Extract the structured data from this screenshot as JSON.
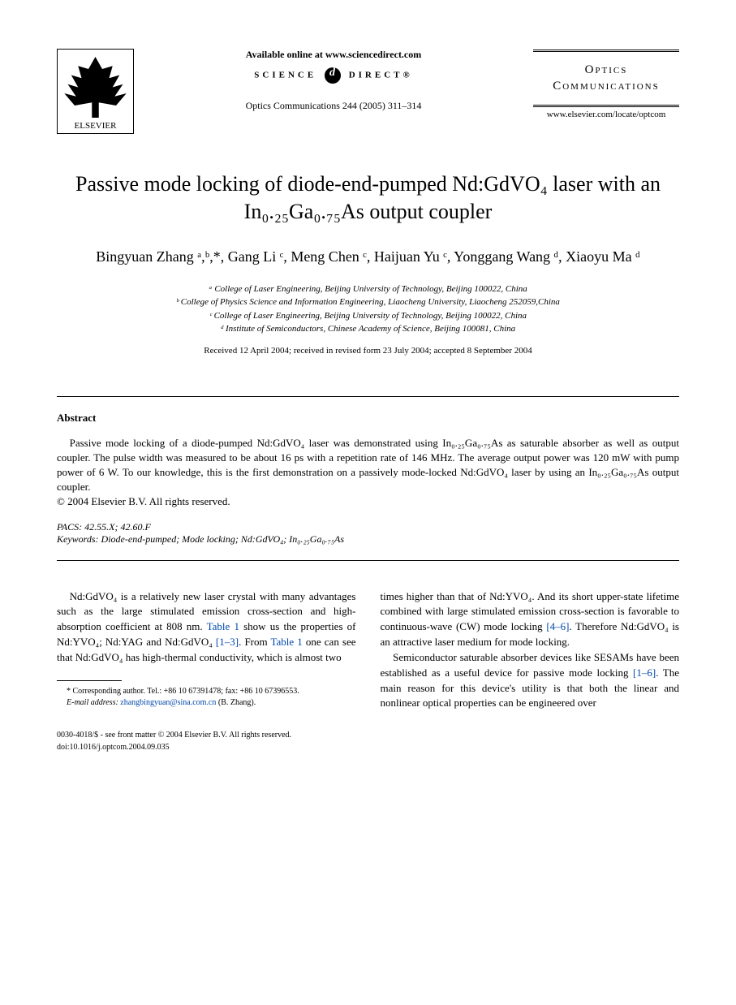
{
  "header": {
    "publisher": "ELSEVIER",
    "available": "Available online at www.sciencedirect.com",
    "science_direct": "SCIENCE",
    "science_direct2": "DIRECT®",
    "journal_ref": "Optics Communications 244 (2005) 311–314",
    "journal_name_1": "Optics",
    "journal_name_2": "Communications",
    "journal_url": "www.elsevier.com/locate/optcom"
  },
  "title": "Passive mode locking of diode-end-pumped Nd:GdVO₄ laser with an In₀.₂₅Ga₀.₇₅As output coupler",
  "authors": "Bingyuan Zhang ᵃ,ᵇ,*, Gang Li ᶜ, Meng Chen ᶜ, Haijuan Yu ᶜ, Yonggang Wang ᵈ, Xiaoyu Ma ᵈ",
  "affiliations": {
    "a": "ᵃ College of Laser Engineering, Beijing University of Technology, Beijing 100022, China",
    "b": "ᵇ College of Physics Science and Information Engineering, Liaocheng University, Liaocheng 252059,China",
    "c": "ᶜ College of Laser Engineering, Beijing University of Technology, Beijing 100022, China",
    "d": "ᵈ Institute of Semiconductors, Chinese Academy of Science, Beijing 100081, China"
  },
  "dates": "Received 12 April 2004; received in revised form 23 July 2004; accepted 8 September 2004",
  "abstract": {
    "heading": "Abstract",
    "text": "Passive mode locking of a diode-pumped Nd:GdVO₄ laser was demonstrated using In₀.₂₅Ga₀.₇₅As as saturable absorber as well as output coupler. The pulse width was measured to be about 16 ps with a repetition rate of 146 MHz. The average output power was 120 mW with pump power of 6 W. To our knowledge, this is the first demonstration on a passively mode-locked Nd:GdVO₄ laser by using an In₀.₂₅Ga₀.₇₅As output coupler.",
    "copyright": "© 2004 Elsevier B.V. All rights reserved."
  },
  "pacs": "PACS: 42.55.X; 42.60.F",
  "keywords": "Keywords: Diode-end-pumped; Mode locking; Nd:GdVO₄; In₀.₂₅Ga₀.₇₅As",
  "body": {
    "col1_p1": "Nd:GdVO₄ is a relatively new laser crystal with many advantages such as the large stimulated emission cross-section and high-absorption coefficient at 808 nm. ",
    "col1_link1": "Table 1",
    "col1_p1b": " show us the properties of Nd:YVO₄; Nd:YAG and Nd:GdVO₄ ",
    "col1_ref1": "[1–3]",
    "col1_p1c": ". From ",
    "col1_link2": "Table 1",
    "col1_p1d": " one can see that Nd:GdVO₄ has high-thermal conductivity, which is almost two",
    "col2_p1": "times higher than that of Nd:YVO₄. And its short upper-state lifetime combined with large stimulated emission cross-section is favorable to continuous-wave (CW) mode locking ",
    "col2_ref1": "[4–6]",
    "col2_p1b": ". Therefore Nd:GdVO₄ is an attractive laser medium for mode locking.",
    "col2_p2": "Semiconductor saturable absorber devices like SESAMs have been established as a useful device for passive mode locking ",
    "col2_ref2": "[1–6]",
    "col2_p2b": ". The main reason for this device's utility is that both the linear and nonlinear optical properties can be engineered over"
  },
  "footnote": {
    "corresponding": "* Corresponding author. Tel.: +86 10 67391478; fax: +86 10 67396553.",
    "email_label": "E-mail address:",
    "email": "zhangbingyuan@sina.com.cn",
    "email_suffix": "(B. Zhang)."
  },
  "footer": {
    "line1": "0030-4018/$ - see front matter © 2004 Elsevier B.V. All rights reserved.",
    "line2": "doi:10.1016/j.optcom.2004.09.035"
  }
}
